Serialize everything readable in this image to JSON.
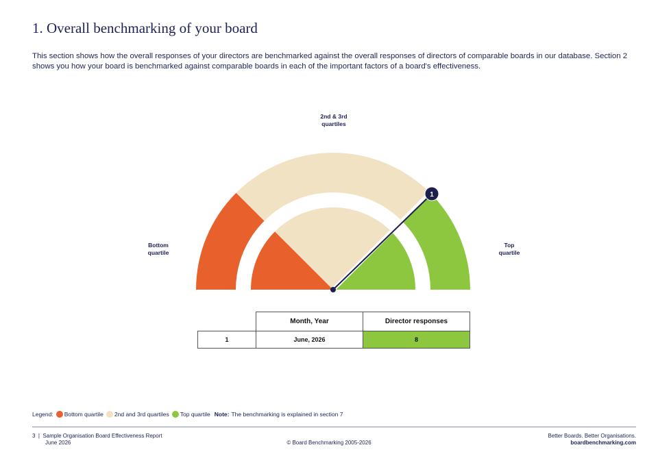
{
  "page": {
    "title": "1. Overall benchmarking of your board",
    "intro": "This section shows how the overall responses of your directors are benchmarked against the overall responses of directors of comparable boards in our database. Section 2 shows you how your board is benchmarked against comparable boards in each of the important factors of a board's effectiveness."
  },
  "gauge": {
    "label_middle": "2nd & 3rd\nquartiles",
    "label_bottom": "Bottom\nquartile",
    "label_top": "Top\nquartile",
    "marker_label": "1",
    "colors": {
      "bottom": "#e8612c",
      "middle": "#f2e2c4",
      "top": "#8dc63f",
      "needle": "#1b1f4d"
    }
  },
  "table": {
    "headers": [
      "",
      "Month, Year",
      "Director responses"
    ],
    "rows": [
      {
        "id": "1",
        "month_year": "June, 2026",
        "responses": "8"
      }
    ]
  },
  "legend": {
    "prefix": "Legend:",
    "items": [
      {
        "label": "Bottom quartile",
        "color": "#e8612c"
      },
      {
        "label": "2nd and 3rd quartiles",
        "color": "#f2e2c4"
      },
      {
        "label": "Top quartile",
        "color": "#8dc63f"
      }
    ],
    "note_label": "Note:",
    "note_text": "The benchmarking is explained in section 7"
  },
  "footer": {
    "page_number": "3",
    "report_title": "Sample Organisation Board Effectiveness Report",
    "date": "June 2026",
    "copyright": "© Board Benchmarking 2005-2026",
    "tagline": "Better Boards. Better Organisations.",
    "website": "boardbenchmarking.com"
  }
}
